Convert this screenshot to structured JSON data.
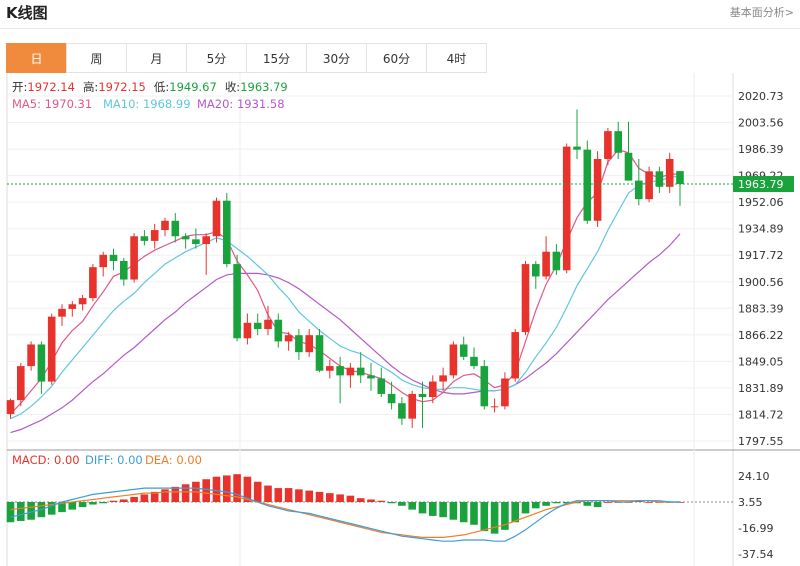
{
  "header": {
    "title": "K线图",
    "more_link": "基本面分析>"
  },
  "tabs": [
    "日",
    "周",
    "月",
    "5分",
    "15分",
    "30分",
    "60分",
    "4时"
  ],
  "active_tab": 0,
  "ohlc_info": {
    "open_label": "开:",
    "open": "1972.14",
    "high_label": "高:",
    "high": "1972.15",
    "low_label": "低:",
    "low": "1949.67",
    "close_label": "收:",
    "close": "1963.79"
  },
  "ma_info": {
    "ma5": "MA5: 1970.31",
    "ma10": "MA10: 1968.99",
    "ma20": "MA20: 1931.58"
  },
  "macd_info": {
    "macd": "MACD: 0.00",
    "diff": "DIFF: 0.00",
    "dea": "DEA: 0.00"
  },
  "colors": {
    "up": "#e8322c",
    "down": "#1aa33c",
    "ma5": "#e0588a",
    "ma10": "#5fc6e0",
    "ma20": "#b45ac8",
    "dea": "#f07d2a",
    "accent": "#f08a3c"
  },
  "chart_data": [
    {
      "type": "candlestick",
      "y_ticks": [
        2020.73,
        2003.56,
        1986.39,
        1969.22,
        1952.06,
        1934.89,
        1917.72,
        1900.56,
        1883.39,
        1866.22,
        1849.05,
        1831.89,
        1814.72,
        1797.55
      ],
      "ylim": [
        1797.55,
        2020.73
      ],
      "last_price_label": "1963.79",
      "ohlc": [
        [
          1815,
          1825,
          1812,
          1824
        ],
        [
          1824,
          1848,
          1820,
          1846
        ],
        [
          1846,
          1862,
          1843,
          1860
        ],
        [
          1860,
          1862,
          1828,
          1836
        ],
        [
          1836,
          1880,
          1834,
          1878
        ],
        [
          1878,
          1886,
          1872,
          1883
        ],
        [
          1883,
          1888,
          1878,
          1886
        ],
        [
          1886,
          1892,
          1882,
          1890
        ],
        [
          1890,
          1912,
          1888,
          1910
        ],
        [
          1910,
          1920,
          1904,
          1918
        ],
        [
          1918,
          1922,
          1908,
          1914
        ],
        [
          1914,
          1916,
          1898,
          1902
        ],
        [
          1902,
          1932,
          1900,
          1930
        ],
        [
          1930,
          1934,
          1924,
          1927
        ],
        [
          1927,
          1938,
          1922,
          1934
        ],
        [
          1934,
          1942,
          1930,
          1940
        ],
        [
          1940,
          1945,
          1926,
          1930
        ],
        [
          1930,
          1932,
          1922,
          1928
        ],
        [
          1928,
          1935,
          1922,
          1925
        ],
        [
          1925,
          1932,
          1905,
          1930
        ],
        [
          1930,
          1955,
          1926,
          1953
        ],
        [
          1953,
          1958,
          1910,
          1912
        ],
        [
          1912,
          1918,
          1862,
          1864
        ],
        [
          1864,
          1880,
          1860,
          1874
        ],
        [
          1874,
          1880,
          1866,
          1870
        ],
        [
          1870,
          1885,
          1866,
          1876
        ],
        [
          1876,
          1880,
          1858,
          1862
        ],
        [
          1862,
          1868,
          1856,
          1866
        ],
        [
          1866,
          1870,
          1850,
          1855
        ],
        [
          1855,
          1870,
          1852,
          1866
        ],
        [
          1866,
          1870,
          1842,
          1843
        ],
        [
          1843,
          1850,
          1838,
          1846
        ],
        [
          1846,
          1852,
          1822,
          1840
        ],
        [
          1840,
          1848,
          1832,
          1845
        ],
        [
          1845,
          1855,
          1835,
          1840
        ],
        [
          1840,
          1848,
          1830,
          1838
        ],
        [
          1838,
          1845,
          1826,
          1828
        ],
        [
          1828,
          1836,
          1818,
          1822
        ],
        [
          1822,
          1826,
          1808,
          1812
        ],
        [
          1812,
          1830,
          1806,
          1828
        ],
        [
          1828,
          1836,
          1806,
          1826
        ],
        [
          1826,
          1840,
          1822,
          1836
        ],
        [
          1836,
          1845,
          1830,
          1840
        ],
        [
          1840,
          1862,
          1838,
          1860
        ],
        [
          1860,
          1865,
          1850,
          1852
        ],
        [
          1852,
          1858,
          1844,
          1846
        ],
        [
          1846,
          1850,
          1818,
          1820
        ],
        [
          1820,
          1825,
          1816,
          1820
        ],
        [
          1820,
          1842,
          1818,
          1838
        ],
        [
          1838,
          1870,
          1836,
          1868
        ],
        [
          1868,
          1914,
          1866,
          1912
        ],
        [
          1912,
          1914,
          1896,
          1904
        ],
        [
          1904,
          1930,
          1902,
          1920
        ],
        [
          1920,
          1925,
          1905,
          1908
        ],
        [
          1908,
          1990,
          1906,
          1988
        ],
        [
          1988,
          2012,
          1980,
          1986
        ],
        [
          1986,
          1992,
          1938,
          1940
        ],
        [
          1940,
          1985,
          1936,
          1980
        ],
        [
          1980,
          2000,
          1976,
          1998
        ],
        [
          1998,
          2004,
          1980,
          1984
        ],
        [
          1984,
          2004,
          1966,
          1966
        ],
        [
          1966,
          1980,
          1950,
          1954
        ],
        [
          1954,
          1975,
          1952,
          1972
        ],
        [
          1972,
          1975,
          1958,
          1962
        ],
        [
          1962,
          1984,
          1958,
          1980
        ],
        [
          1972.14,
          1972.15,
          1949.67,
          1963.79
        ]
      ],
      "ma5": [
        1815,
        1822,
        1830,
        1838,
        1849,
        1861,
        1869,
        1875,
        1885,
        1894,
        1904,
        1907,
        1912,
        1917,
        1921,
        1924,
        1927,
        1930,
        1931,
        1931,
        1933,
        1928,
        1914,
        1905,
        1895,
        1879,
        1868,
        1867,
        1862,
        1860,
        1856,
        1851,
        1846,
        1843,
        1842,
        1840,
        1838,
        1834,
        1829,
        1825,
        1823,
        1824,
        1829,
        1836,
        1840,
        1841,
        1837,
        1832,
        1834,
        1842,
        1862,
        1882,
        1899,
        1911,
        1927,
        1942,
        1952,
        1958,
        1978,
        1986,
        1984,
        1974,
        1970,
        1968,
        1970,
        1970.31
      ],
      "ma10": [
        1812,
        1815,
        1820,
        1826,
        1833,
        1842,
        1850,
        1858,
        1866,
        1874,
        1882,
        1888,
        1893,
        1900,
        1906,
        1912,
        1916,
        1920,
        1923,
        1926,
        1929,
        1927,
        1922,
        1917,
        1911,
        1905,
        1897,
        1890,
        1881,
        1875,
        1869,
        1864,
        1859,
        1856,
        1854,
        1850,
        1846,
        1842,
        1837,
        1834,
        1832,
        1831,
        1831,
        1832,
        1832,
        1831,
        1830,
        1830,
        1831,
        1834,
        1842,
        1852,
        1861,
        1871,
        1884,
        1898,
        1909,
        1920,
        1934,
        1946,
        1958,
        1963,
        1965,
        1966,
        1968,
        1968.99
      ],
      "ma20": [
        1803,
        1805,
        1808,
        1811,
        1815,
        1819,
        1824,
        1830,
        1836,
        1841,
        1847,
        1853,
        1858,
        1864,
        1870,
        1876,
        1881,
        1887,
        1892,
        1897,
        1902,
        1905,
        1906,
        1906,
        1906,
        1905,
        1903,
        1900,
        1896,
        1891,
        1886,
        1881,
        1876,
        1870,
        1864,
        1858,
        1852,
        1846,
        1841,
        1837,
        1834,
        1831,
        1829,
        1828,
        1828,
        1829,
        1830,
        1830,
        1831,
        1834,
        1838,
        1843,
        1848,
        1854,
        1861,
        1868,
        1875,
        1882,
        1889,
        1895,
        1901,
        1907,
        1913,
        1918,
        1924,
        1931.58
      ]
    },
    {
      "type": "macd",
      "y_ticks": [
        24.1,
        3.55,
        -16.99,
        -37.54
      ],
      "ylim": [
        -37.54,
        24.1
      ],
      "zero_label": "3.55",
      "hist": [
        -16,
        -15,
        -14,
        -12,
        -10,
        -8,
        -6,
        -4,
        -2,
        -1,
        1,
        2,
        4,
        6,
        8,
        10,
        12,
        14,
        16,
        18,
        20,
        21,
        22,
        20,
        16,
        13,
        11,
        11,
        10,
        9,
        8,
        7,
        6,
        5,
        3,
        2,
        1,
        -1,
        -3,
        -6,
        -9,
        -11,
        -12,
        -14,
        -16,
        -18,
        -23,
        -25,
        -22,
        -16,
        -9,
        -5,
        -3,
        -1,
        -1,
        -1,
        -3,
        -4,
        0,
        0,
        0,
        1,
        0,
        0,
        0,
        0
      ],
      "diff": [
        -12,
        -10,
        -8,
        -6,
        -3,
        0,
        2,
        4,
        6,
        7,
        8,
        9,
        10,
        11,
        11,
        11,
        11,
        11,
        11,
        10,
        9,
        8,
        6,
        3,
        0,
        -3,
        -5,
        -7,
        -8,
        -9,
        -11,
        -13,
        -15,
        -17,
        -19,
        -21,
        -23,
        -25,
        -27,
        -28,
        -29,
        -30,
        -31,
        -31,
        -30,
        -30,
        -30,
        -31,
        -31,
        -27,
        -22,
        -16,
        -10,
        -5,
        -1,
        1,
        1,
        1,
        1,
        0,
        0,
        1,
        1,
        1,
        0,
        0
      ],
      "dea": [
        -6,
        -5,
        -4,
        -3,
        -2,
        -1,
        0,
        1,
        2,
        3,
        4,
        5,
        6,
        7,
        7,
        8,
        8,
        8,
        8,
        7,
        6,
        5,
        4,
        2,
        0,
        -2,
        -4,
        -6,
        -8,
        -10,
        -12,
        -14,
        -16,
        -18,
        -20,
        -22,
        -24,
        -25,
        -26,
        -27,
        -28,
        -28,
        -28,
        -27,
        -26,
        -24,
        -22,
        -20,
        -18,
        -15,
        -12,
        -9,
        -6,
        -4,
        -2,
        0,
        1,
        1,
        1,
        1,
        1,
        1,
        1,
        0,
        0,
        0
      ]
    }
  ]
}
